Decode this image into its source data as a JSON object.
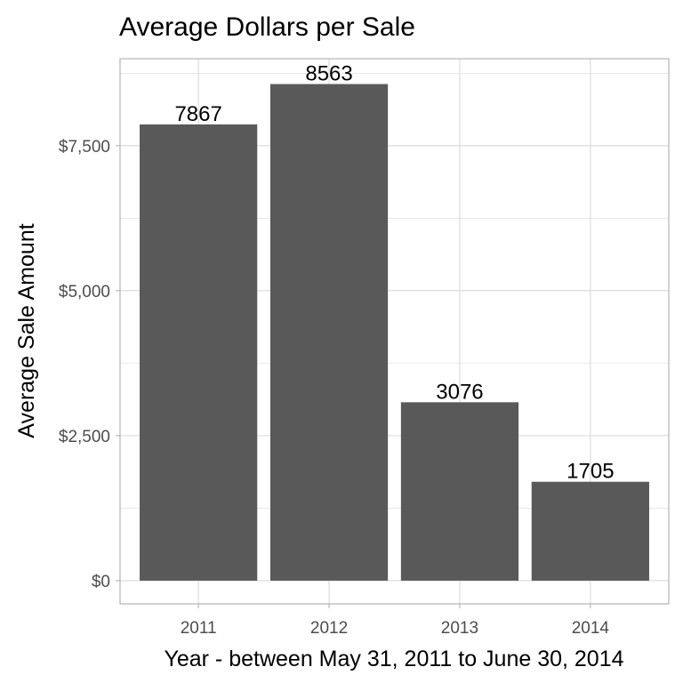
{
  "chart_data": {
    "type": "bar",
    "title": "Average Dollars per Sale",
    "xlabel": "Year - between May 31, 2011 to  June 30, 2014",
    "ylabel": "Average Sale Amount",
    "categories": [
      "2011",
      "2012",
      "2013",
      "2014"
    ],
    "values": [
      7867,
      8563,
      3076,
      1705
    ],
    "data_labels": [
      "7867",
      "8563",
      "3076",
      "1705"
    ],
    "ylim": [
      -400,
      9000
    ],
    "yticks": [
      0,
      2500,
      5000,
      7500
    ],
    "ytick_labels": [
      "$0",
      "$2,500",
      "$5,000",
      "$7,500"
    ],
    "grid": true,
    "bar_color": "#595959",
    "grid_color": "#d9d9d9",
    "panel_border_color": "#b3b3b3"
  }
}
